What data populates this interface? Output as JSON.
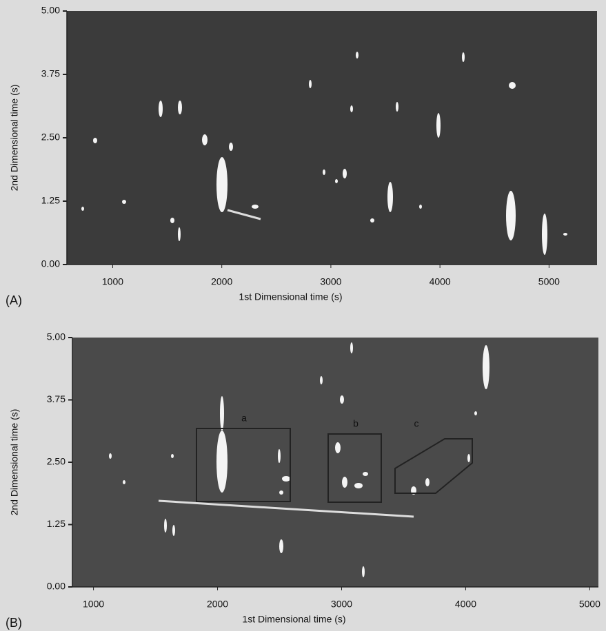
{
  "chart_data": [
    {
      "type": "image",
      "panel_label": "(A)",
      "x_label": "1st Dimensional time (s)",
      "y_label": "2nd Dimensional time (s)",
      "xlim": [
        580,
        5440
      ],
      "xticks": [
        1000,
        2000,
        3000,
        4000,
        5000
      ],
      "ylim": [
        0,
        5
      ],
      "yticks": [
        {
          "value": 0,
          "label": "0.00"
        },
        {
          "value": 1.25,
          "label": "1.25"
        },
        {
          "value": 2.5,
          "label": "2.50"
        },
        {
          "value": 3.75,
          "label": "3.75"
        },
        {
          "value": 5,
          "label": "5.00"
        }
      ]
    },
    {
      "type": "image",
      "panel_label": "(B)",
      "x_label": "1st Dimensional time (s)",
      "y_label": "2nd Dimensional time (s)",
      "xlim": [
        830,
        5070
      ],
      "xticks": [
        1000,
        2000,
        3000,
        4000,
        5000
      ],
      "ylim": [
        0,
        5
      ],
      "yticks": [
        {
          "value": 0,
          "label": "0.00"
        },
        {
          "value": 1.25,
          "label": "1.25"
        },
        {
          "value": 2.5,
          "label": "2.50"
        },
        {
          "value": 3.75,
          "label": "3.75"
        },
        {
          "value": 5,
          "label": "5.00"
        }
      ],
      "annotations": [
        "a",
        "b",
        "c"
      ]
    }
  ]
}
